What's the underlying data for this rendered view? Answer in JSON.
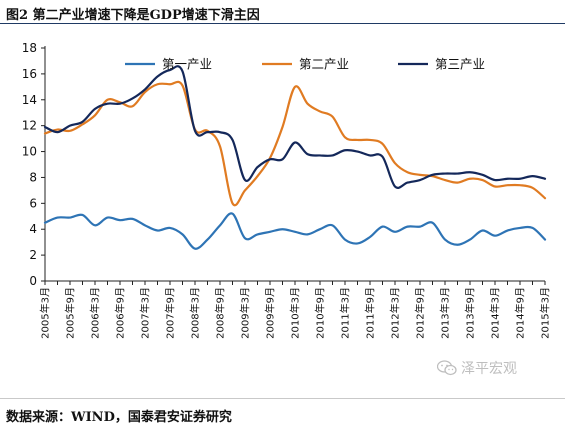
{
  "figure": {
    "title": "图2 第二产业增速下降是GDP增速下滑主因",
    "source": "数据来源：WIND，国泰君安证券研究",
    "watermark": "泽平宏观"
  },
  "chart_data": {
    "type": "line",
    "title": "",
    "xlabel": "",
    "ylabel": "",
    "ylim": [
      0,
      18
    ],
    "yticks": [
      0,
      2,
      4,
      6,
      8,
      10,
      12,
      14,
      16,
      18
    ],
    "legend_position": "top",
    "grid": false,
    "x_labels": [
      "2005年3月",
      "2005年9月",
      "2006年3月",
      "2006年9月",
      "2007年3月",
      "2007年9月",
      "2008年3月",
      "2008年9月",
      "2009年3月",
      "2009年9月",
      "2010年3月",
      "2010年9月",
      "2011年3月",
      "2011年9月",
      "2012年3月",
      "2012年9月",
      "2013年3月",
      "2013年9月",
      "2014年3月",
      "2014年9月",
      "2015年3月"
    ],
    "x": [
      "2005Q1",
      "2005Q2",
      "2005Q3",
      "2005Q4",
      "2006Q1",
      "2006Q2",
      "2006Q3",
      "2006Q4",
      "2007Q1",
      "2007Q2",
      "2007Q3",
      "2007Q4",
      "2008Q1",
      "2008Q2",
      "2008Q3",
      "2008Q4",
      "2009Q1",
      "2009Q2",
      "2009Q3",
      "2009Q4",
      "2010Q1",
      "2010Q2",
      "2010Q3",
      "2010Q4",
      "2011Q1",
      "2011Q2",
      "2011Q3",
      "2011Q4",
      "2012Q1",
      "2012Q2",
      "2012Q3",
      "2012Q4",
      "2013Q1",
      "2013Q2",
      "2013Q3",
      "2013Q4",
      "2014Q1",
      "2014Q2",
      "2014Q3",
      "2014Q4",
      "2015Q1"
    ],
    "series": [
      {
        "name": "第一产业",
        "color": "#2e74b5",
        "values": [
          4.5,
          4.9,
          4.9,
          5.1,
          4.3,
          4.9,
          4.7,
          4.8,
          4.3,
          3.9,
          4.1,
          3.6,
          2.5,
          3.2,
          4.3,
          5.2,
          3.3,
          3.6,
          3.8,
          4.0,
          3.8,
          3.6,
          4.0,
          4.3,
          3.2,
          2.9,
          3.4,
          4.2,
          3.8,
          4.2,
          4.2,
          4.5,
          3.2,
          2.8,
          3.2,
          3.9,
          3.5,
          3.9,
          4.1,
          4.1,
          3.2
        ]
      },
      {
        "name": "第二产业",
        "color": "#e07b22",
        "values": [
          11.4,
          11.7,
          11.6,
          12.1,
          12.8,
          14.0,
          13.8,
          13.5,
          14.6,
          15.2,
          15.2,
          15.1,
          11.7,
          11.6,
          10.4,
          6.0,
          7.0,
          8.1,
          9.5,
          11.9,
          15.0,
          13.7,
          13.1,
          12.7,
          11.1,
          10.9,
          10.9,
          10.6,
          9.1,
          8.4,
          8.2,
          8.1,
          7.8,
          7.6,
          7.9,
          7.8,
          7.3,
          7.4,
          7.4,
          7.2,
          6.4
        ]
      },
      {
        "name": "第三产业",
        "color": "#14285a",
        "values": [
          11.9,
          11.5,
          12.0,
          12.3,
          13.3,
          13.7,
          13.7,
          14.1,
          14.8,
          15.8,
          16.3,
          16.2,
          11.6,
          11.5,
          11.5,
          10.9,
          7.8,
          8.8,
          9.4,
          9.4,
          10.7,
          9.8,
          9.7,
          9.7,
          10.1,
          10.0,
          9.7,
          9.6,
          7.3,
          7.6,
          7.8,
          8.2,
          8.3,
          8.3,
          8.4,
          8.2,
          7.8,
          7.9,
          7.9,
          8.1,
          7.9
        ]
      }
    ]
  }
}
